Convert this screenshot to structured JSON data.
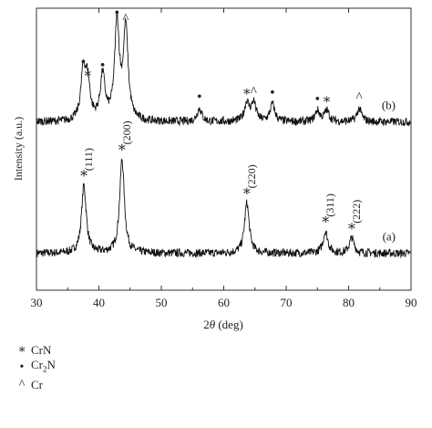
{
  "chart_data": {
    "type": "line",
    "xlabel_parts": {
      "pre": "2",
      "theta": "θ",
      "post": " (deg)"
    },
    "ylabel": "Intensity (a.u.)",
    "xlim": [
      30,
      90
    ],
    "x_ticks": [
      "30",
      "40",
      "50",
      "60",
      "70",
      "80",
      "90"
    ],
    "y_ticks_shown": false,
    "grid": false,
    "series": [
      {
        "name": "(a)",
        "label": "(a)",
        "baseline": 0.12,
        "peaks": [
          {
            "x": 37.6,
            "height": 0.62,
            "hkl": "(111)",
            "phase": "CrN"
          },
          {
            "x": 43.7,
            "height": 0.86,
            "hkl": "(200)",
            "phase": "CrN"
          },
          {
            "x": 63.7,
            "height": 0.46,
            "hkl": "(220)",
            "phase": "CrN"
          },
          {
            "x": 76.3,
            "height": 0.2,
            "hkl": "(311)",
            "phase": "CrN"
          },
          {
            "x": 80.5,
            "height": 0.14,
            "hkl": "(222)",
            "phase": "CrN"
          }
        ]
      },
      {
        "name": "(b)",
        "label": "(b)",
        "baseline": 1.32,
        "peaks": [
          {
            "x": 37.5,
            "height": 0.44,
            "marker": "dot",
            "phase": "Cr2N"
          },
          {
            "x": 38.2,
            "height": 0.34,
            "marker": "star",
            "phase": "CrN"
          },
          {
            "x": 40.6,
            "height": 0.41,
            "marker": "dot",
            "phase": "Cr2N"
          },
          {
            "x": 42.9,
            "height": 0.89,
            "marker": "dot",
            "phase": "Cr2N"
          },
          {
            "x": 44.3,
            "height": 0.84,
            "marker": "caret",
            "phase": "Cr"
          },
          {
            "x": 56.1,
            "height": 0.12,
            "marker": "dot",
            "phase": "Cr2N"
          },
          {
            "x": 63.7,
            "height": 0.17,
            "marker": "star",
            "phase": "CrN"
          },
          {
            "x": 64.8,
            "height": 0.17,
            "marker": "caret",
            "phase": "Cr"
          },
          {
            "x": 67.8,
            "height": 0.16,
            "marker": "dot",
            "phase": "Cr2N"
          },
          {
            "x": 75.0,
            "height": 0.1,
            "marker": "dot",
            "phase": "Cr2N"
          },
          {
            "x": 76.5,
            "height": 0.1,
            "marker": "star",
            "phase": "CrN"
          },
          {
            "x": 81.7,
            "height": 0.12,
            "marker": "caret",
            "phase": "Cr"
          }
        ]
      }
    ]
  },
  "legend": [
    {
      "symbol": "∗",
      "label": "CrN"
    },
    {
      "symbol": "•",
      "label_main": "Cr",
      "label_sub": "2",
      "label_tail": "N"
    },
    {
      "symbol": "^",
      "label": "Cr"
    }
  ],
  "glyphs": {
    "star": "∗",
    "dot": "•",
    "caret": "^"
  }
}
